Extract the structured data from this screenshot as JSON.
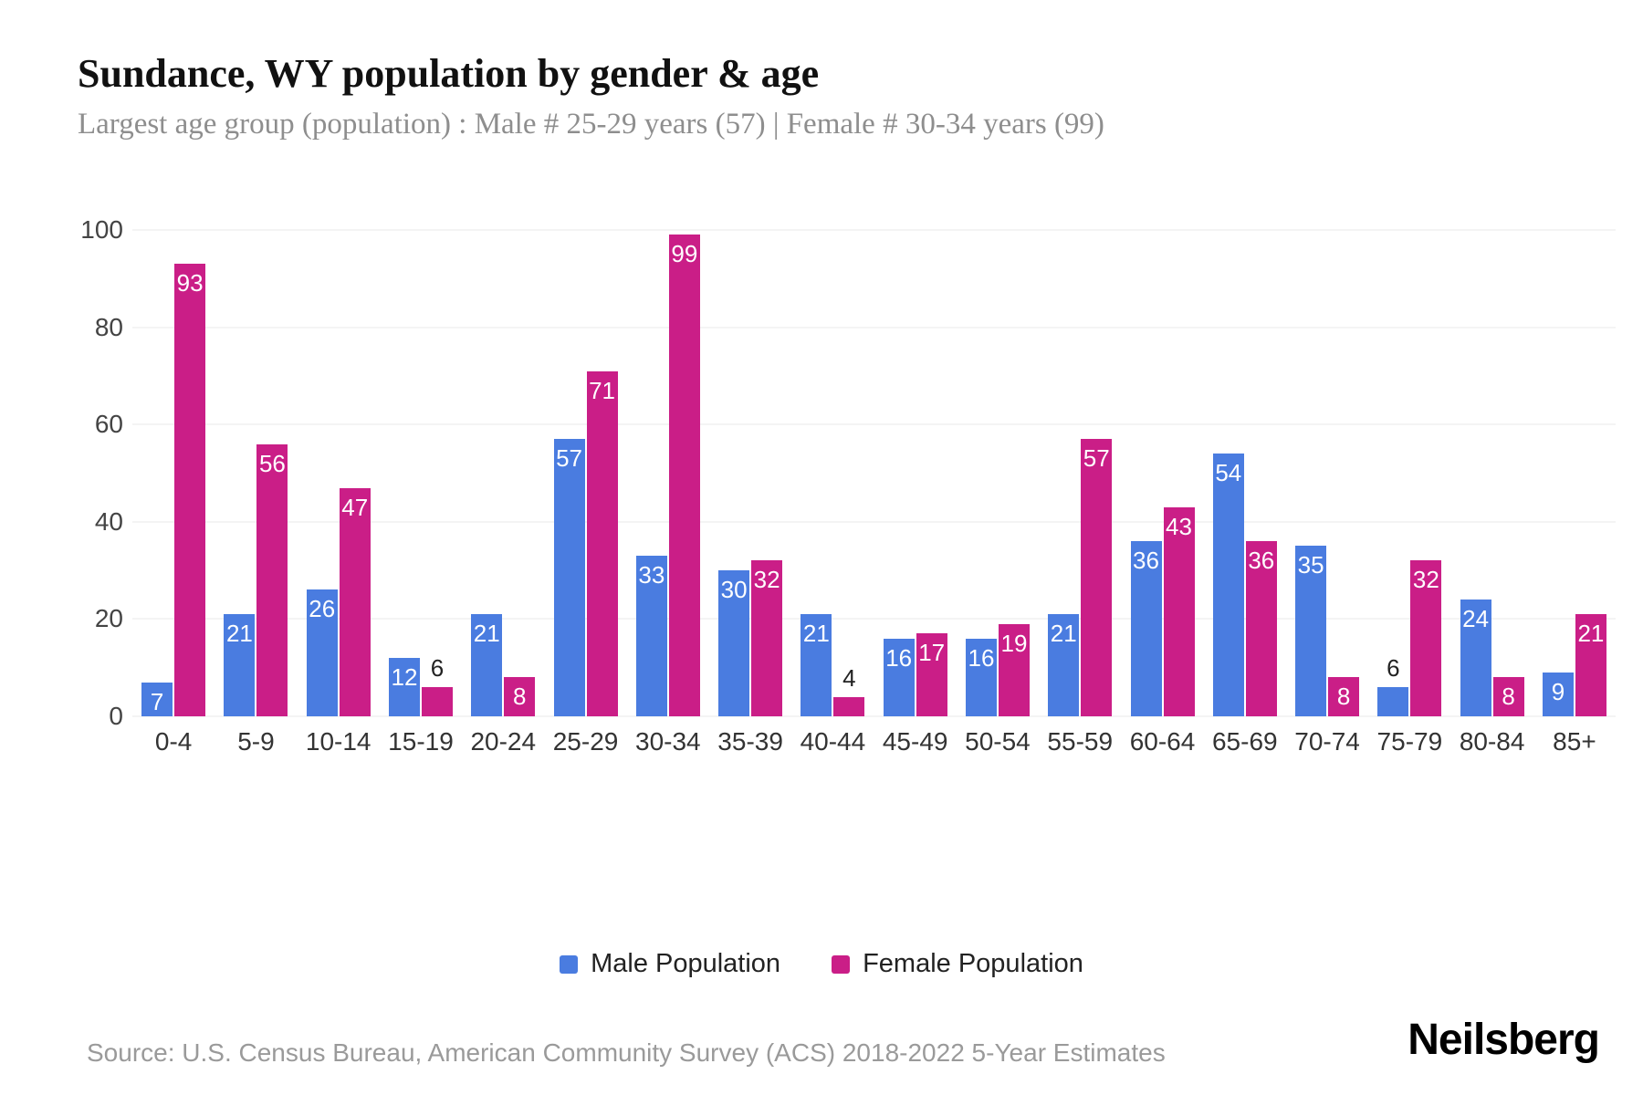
{
  "title": "Sundance, WY population by gender & age",
  "subtitle": "Largest age group (population) : Male # 25-29 years (57) | Female # 30-34 years (99)",
  "source": "Source: U.S. Census Bureau, American Community Survey (ACS) 2018-2022 5-Year Estimates",
  "brand": "Neilsberg",
  "colors": {
    "male": "#4a7ce0",
    "female": "#ca1e87",
    "grid": "#e8e8e8",
    "axis_text": "#444444",
    "subtitle_text": "#8e8e8e",
    "label_inside": "#ffffff",
    "label_outside": "#222222"
  },
  "legend": [
    {
      "label": "Male Population",
      "color": "#4a7ce0"
    },
    {
      "label": "Female Population",
      "color": "#ca1e87"
    }
  ],
  "chart_data": {
    "type": "bar",
    "title": "Sundance, WY population by gender & age",
    "xlabel": "",
    "ylabel": "",
    "categories": [
      "0-4",
      "5-9",
      "10-14",
      "15-19",
      "20-24",
      "25-29",
      "30-34",
      "35-39",
      "40-44",
      "45-49",
      "50-54",
      "55-59",
      "60-64",
      "65-69",
      "70-74",
      "75-79",
      "80-84",
      "85+"
    ],
    "series": [
      {
        "name": "Male Population",
        "color": "#4a7ce0",
        "values": [
          7,
          21,
          26,
          12,
          21,
          57,
          33,
          30,
          21,
          16,
          16,
          21,
          36,
          54,
          35,
          6,
          24,
          9
        ]
      },
      {
        "name": "Female Population",
        "color": "#ca1e87",
        "values": [
          93,
          56,
          47,
          6,
          8,
          71,
          99,
          32,
          4,
          17,
          19,
          57,
          43,
          36,
          8,
          32,
          8,
          21
        ]
      }
    ],
    "ylim": [
      0,
      100
    ],
    "yticks": [
      0,
      20,
      40,
      60,
      80,
      100
    ],
    "grid": true,
    "legend_position": "bottom",
    "label_outside_threshold": 6
  }
}
